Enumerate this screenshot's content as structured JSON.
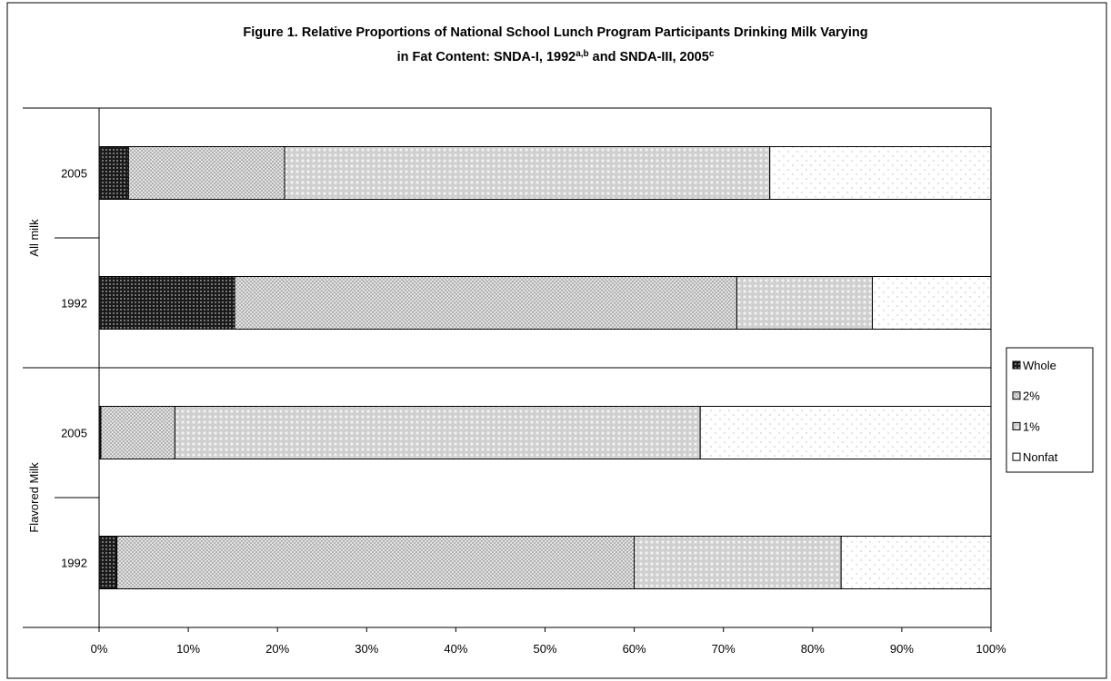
{
  "chart_data": {
    "type": "stacked_bar_horizontal",
    "title": [
      "Figure 1.  Relative Proportions of National School Lunch Program Participants Drinking Milk Varying",
      "in Fat Content: SNDA-I, 1992",
      "a,b",
      " and SNDA-III, 2005",
      "c"
    ],
    "categories": [
      "2005",
      "1992",
      "2005",
      "1992"
    ],
    "groups": [
      "All milk",
      "Flavored Milk"
    ],
    "series": [
      {
        "name": "Whole",
        "color": "#1a1a1a",
        "values": [
          3.3,
          15.2,
          0.2,
          2.0
        ]
      },
      {
        "name": "2%",
        "color": "#a6a6a6",
        "values": [
          17.5,
          56.3,
          8.3,
          58.0
        ]
      },
      {
        "name": "1%",
        "color": "#cfcfcf",
        "values": [
          54.4,
          15.2,
          58.9,
          23.2
        ]
      },
      {
        "name": "Nonfat",
        "color": "#ffffff",
        "values": [
          24.8,
          13.3,
          32.6,
          16.8
        ]
      }
    ],
    "xlim": [
      0,
      100
    ],
    "xticks": [
      {
        "value": 0,
        "label": "0%"
      },
      {
        "value": 10,
        "label": "10%"
      },
      {
        "value": 20,
        "label": "20%"
      },
      {
        "value": 30,
        "label": "30%"
      },
      {
        "value": 40,
        "label": "40%"
      },
      {
        "value": 50,
        "label": "50%"
      },
      {
        "value": 60,
        "label": "60%"
      },
      {
        "value": 70,
        "label": "70%"
      },
      {
        "value": 80,
        "label": "80%"
      },
      {
        "value": 90,
        "label": "90%"
      },
      {
        "value": 100,
        "label": "100%"
      }
    ],
    "legend": "right"
  }
}
